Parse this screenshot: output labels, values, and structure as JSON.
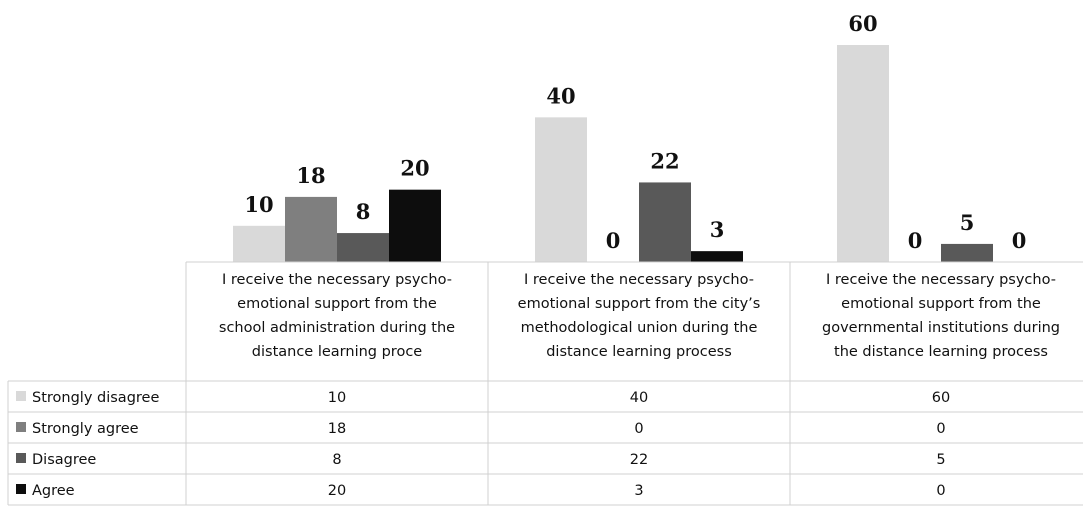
{
  "chart_data": {
    "type": "bar",
    "categories": [
      "I receive the necessary psycho-emotional support from the school administration during the distance learning proce",
      "I receive the necessary psycho-emotional support from the city’s methodological union during the distance learning process",
      "I receive the necessary psycho-emotional support from the governmental institutions during the distance learning process"
    ],
    "category_lines": [
      [
        "I receive the necessary psycho-",
        "emotional support from the",
        "school administration during the",
        "distance learning proce"
      ],
      [
        "I receive the necessary psycho-",
        "emotional support from the city’s",
        "methodological union during the",
        "distance learning process"
      ],
      [
        "I receive the necessary psycho-",
        "emotional support from the",
        "governmental institutions during",
        "the distance learning process"
      ]
    ],
    "series": [
      {
        "name": "Strongly disagree",
        "color": "#d9d9d9",
        "values": [
          10,
          40,
          60
        ]
      },
      {
        "name": "Strongly agree",
        "color": "#7f7f7f",
        "values": [
          18,
          0,
          0
        ]
      },
      {
        "name": "Disagree",
        "color": "#595959",
        "values": [
          8,
          22,
          5
        ]
      },
      {
        "name": "Agree",
        "color": "#0d0d0d",
        "values": [
          20,
          3,
          0
        ]
      }
    ],
    "ylim": [
      0,
      60
    ],
    "grid": false,
    "legend": "data-table",
    "data_labels": true
  }
}
